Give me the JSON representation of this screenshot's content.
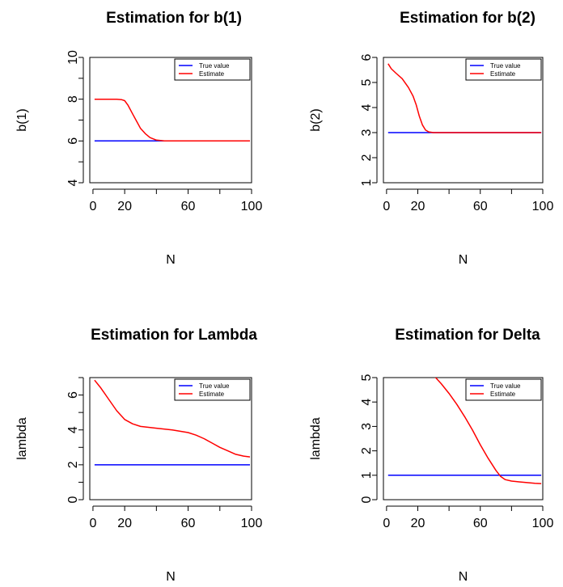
{
  "chart_data": [
    {
      "type": "line",
      "title": "Estimation for b(1)",
      "xlabel": "N",
      "ylabel": "b(1)",
      "xlim": [
        -2,
        100
      ],
      "ylim": [
        4,
        10
      ],
      "xticks": [
        0,
        20,
        60,
        100
      ],
      "xticks_minor": [
        40,
        80
      ],
      "yticks": [
        4,
        6,
        8,
        10
      ],
      "yticks_minor": [
        5,
        7,
        9
      ],
      "legend": {
        "placement": "top-right",
        "entries": [
          "True value",
          "Estimate"
        ]
      },
      "series": [
        {
          "name": "True value",
          "color": "#0000ff",
          "x": [
            1,
            99
          ],
          "y": [
            6,
            6
          ]
        },
        {
          "name": "Estimate",
          "color": "#ff0000",
          "x": [
            1,
            5,
            10,
            15,
            18,
            20,
            22,
            25,
            28,
            30,
            33,
            36,
            40,
            45,
            50,
            60,
            70,
            80,
            90,
            99
          ],
          "y": [
            8,
            8,
            8,
            8,
            7.98,
            7.93,
            7.72,
            7.3,
            6.88,
            6.6,
            6.35,
            6.16,
            6.04,
            6.0,
            6.0,
            6.0,
            6.0,
            6.0,
            6.0,
            6.0
          ]
        }
      ]
    },
    {
      "type": "line",
      "title": "Estimation for b(2)",
      "xlabel": "N",
      "ylabel": "b(2)",
      "xlim": [
        -2,
        100
      ],
      "ylim": [
        1,
        6
      ],
      "xticks": [
        0,
        20,
        60,
        100
      ],
      "xticks_minor": [
        40,
        80
      ],
      "yticks": [
        1,
        2,
        3,
        4,
        5,
        6
      ],
      "yticks_minor": [],
      "legend": {
        "placement": "top-right",
        "entries": [
          "True value",
          "Estimate"
        ]
      },
      "series": [
        {
          "name": "True value",
          "color": "#0000ff",
          "x": [
            1,
            99
          ],
          "y": [
            3,
            3
          ]
        },
        {
          "name": "Estimate",
          "color": "#ff0000",
          "x": [
            1,
            3,
            6,
            10,
            14,
            17,
            19,
            21,
            23,
            25,
            27,
            30,
            35,
            40,
            60,
            80,
            99
          ],
          "y": [
            5.75,
            5.55,
            5.37,
            5.15,
            4.8,
            4.45,
            4.1,
            3.65,
            3.3,
            3.1,
            3.03,
            3.0,
            3.0,
            3.0,
            3.0,
            3.0,
            3.0
          ]
        }
      ]
    },
    {
      "type": "line",
      "title": "Estimation for Lambda",
      "xlabel": "N",
      "ylabel": "lambda",
      "xlim": [
        -2,
        100
      ],
      "ylim": [
        0,
        7
      ],
      "xticks": [
        0,
        20,
        60,
        100
      ],
      "xticks_minor": [
        40,
        80
      ],
      "yticks": [
        0,
        2,
        4,
        6
      ],
      "yticks_minor": [
        1,
        3,
        5,
        7
      ],
      "legend": {
        "placement": "top-right",
        "entries": [
          "True value",
          "Estimate"
        ]
      },
      "series": [
        {
          "name": "True value",
          "color": "#0000ff",
          "x": [
            1,
            99
          ],
          "y": [
            2,
            2
          ]
        },
        {
          "name": "Estimate",
          "color": "#ff0000",
          "x": [
            1,
            5,
            10,
            15,
            20,
            25,
            30,
            40,
            50,
            60,
            65,
            70,
            75,
            80,
            85,
            90,
            95,
            99
          ],
          "y": [
            6.85,
            6.4,
            5.75,
            5.1,
            4.6,
            4.35,
            4.2,
            4.1,
            4.0,
            3.85,
            3.7,
            3.5,
            3.25,
            3.0,
            2.8,
            2.6,
            2.5,
            2.45
          ]
        }
      ]
    },
    {
      "type": "line",
      "title": "Estimation for Delta",
      "xlabel": "N",
      "ylabel": "lambda",
      "xlim": [
        -2,
        100
      ],
      "ylim": [
        0,
        5
      ],
      "xticks": [
        0,
        20,
        60,
        100
      ],
      "xticks_minor": [
        40,
        80
      ],
      "yticks": [
        0,
        1,
        2,
        3,
        4,
        5
      ],
      "yticks_minor": [],
      "legend": {
        "placement": "top-right",
        "entries": [
          "True value",
          "Estimate"
        ]
      },
      "series": [
        {
          "name": "True value",
          "color": "#0000ff",
          "x": [
            1,
            99
          ],
          "y": [
            1,
            1
          ]
        },
        {
          "name": "Estimate",
          "color": "#ff0000",
          "x": [
            1,
            5,
            10,
            15,
            20,
            25,
            30,
            35,
            40,
            45,
            50,
            55,
            60,
            65,
            70,
            73,
            76,
            80,
            85,
            90,
            95,
            99
          ],
          "y": [
            5.05,
            5.2,
            5.35,
            5.45,
            5.45,
            5.35,
            5.1,
            4.75,
            4.35,
            3.9,
            3.4,
            2.85,
            2.25,
            1.7,
            1.2,
            0.95,
            0.82,
            0.76,
            0.73,
            0.7,
            0.67,
            0.66
          ]
        }
      ]
    }
  ]
}
